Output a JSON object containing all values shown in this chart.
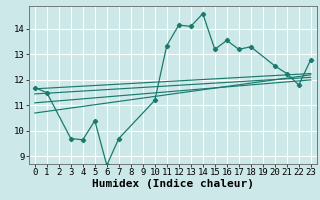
{
  "bg_color": "#cde8e8",
  "grid_color": "#ffffff",
  "line_color": "#1a7a6e",
  "xlabel": "Humidex (Indice chaleur)",
  "xlabel_fontsize": 8,
  "tick_fontsize": 6.5,
  "xlim": [
    -0.5,
    23.5
  ],
  "ylim": [
    8.7,
    14.9
  ],
  "yticks": [
    9,
    10,
    11,
    12,
    13,
    14
  ],
  "xticks": [
    0,
    1,
    2,
    3,
    4,
    5,
    6,
    7,
    8,
    9,
    10,
    11,
    12,
    13,
    14,
    15,
    16,
    17,
    18,
    19,
    20,
    21,
    22,
    23
  ],
  "zigzag_x": [
    0,
    1,
    3,
    4,
    5,
    6,
    7,
    10,
    11,
    12,
    13,
    14,
    15,
    16,
    17,
    18,
    20,
    21,
    22,
    23
  ],
  "zigzag_y": [
    11.7,
    11.5,
    9.7,
    9.65,
    10.4,
    8.65,
    9.7,
    11.2,
    13.35,
    14.15,
    14.1,
    14.6,
    13.2,
    13.55,
    13.2,
    13.3,
    12.55,
    12.25,
    11.8,
    12.8
  ],
  "trend1_x0": 0,
  "trend1_y0": 11.65,
  "trend1_x1": 23,
  "trend1_y1": 12.25,
  "trend2_x0": 0,
  "trend2_y0": 11.45,
  "trend2_x1": 23,
  "trend2_y1": 12.1,
  "trend3_x0": 0,
  "trend3_y0": 11.1,
  "trend3_x1": 23,
  "trend3_y1": 12.0,
  "trend4_x0": 0,
  "trend4_y0": 10.7,
  "trend4_x1": 23,
  "trend4_y1": 12.2
}
